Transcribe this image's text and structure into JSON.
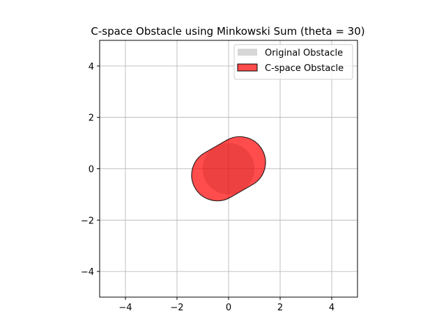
{
  "chart_data": {
    "type": "area",
    "title": "C-space Obstacle using Minkowski Sum (theta = 30)",
    "xlabel": "",
    "ylabel": "",
    "xlim": [
      -5,
      5
    ],
    "ylim": [
      -5,
      5
    ],
    "xticks": [
      -4,
      -2,
      0,
      2,
      4
    ],
    "yticks": [
      -4,
      -2,
      0,
      2,
      4
    ],
    "xtick_labels": [
      "−4",
      "−2",
      "0",
      "2",
      "4"
    ],
    "ytick_labels": [
      "−4",
      "−2",
      "0",
      "2",
      "4"
    ],
    "grid": true,
    "legend_position": "top-right",
    "series": [
      {
        "name": "Original Obstacle",
        "shape": "circle",
        "center": [
          0,
          0
        ],
        "radius": 1,
        "color": "#bdbdbd"
      },
      {
        "name": "C-space Obstacle",
        "shape": "stadium",
        "segment_start": [
          -0.433,
          -0.25
        ],
        "segment_end": [
          0.433,
          0.25
        ],
        "radius": 1,
        "angle_deg": 30,
        "color": "#ff0000",
        "edge_color": "#000000"
      }
    ]
  }
}
